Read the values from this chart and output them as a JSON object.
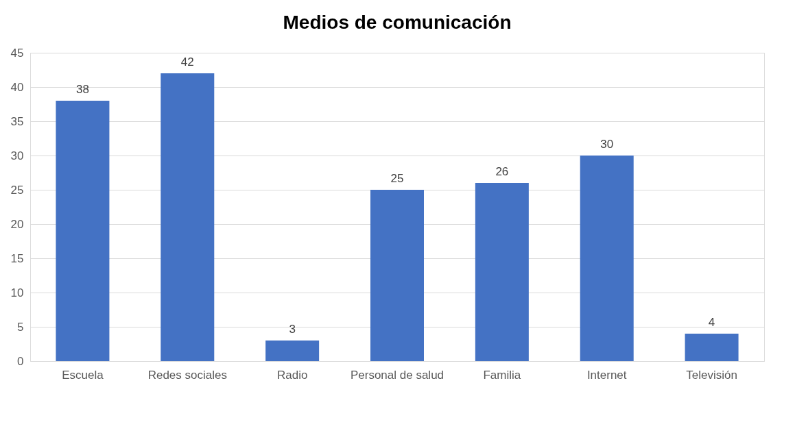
{
  "chart_data": {
    "type": "bar",
    "title": "Medios de comunicación",
    "categories": [
      "Escuela",
      "Redes sociales",
      "Radio",
      "Personal de salud",
      "Familia",
      "Internet",
      "Televisión"
    ],
    "values": [
      38,
      42,
      3,
      25,
      26,
      30,
      4
    ],
    "color": "#4472c4",
    "ylim": [
      0,
      45
    ],
    "yticks": [
      0,
      5,
      10,
      15,
      20,
      25,
      30,
      35,
      40,
      45
    ],
    "grid": "y",
    "data_labels": true
  }
}
